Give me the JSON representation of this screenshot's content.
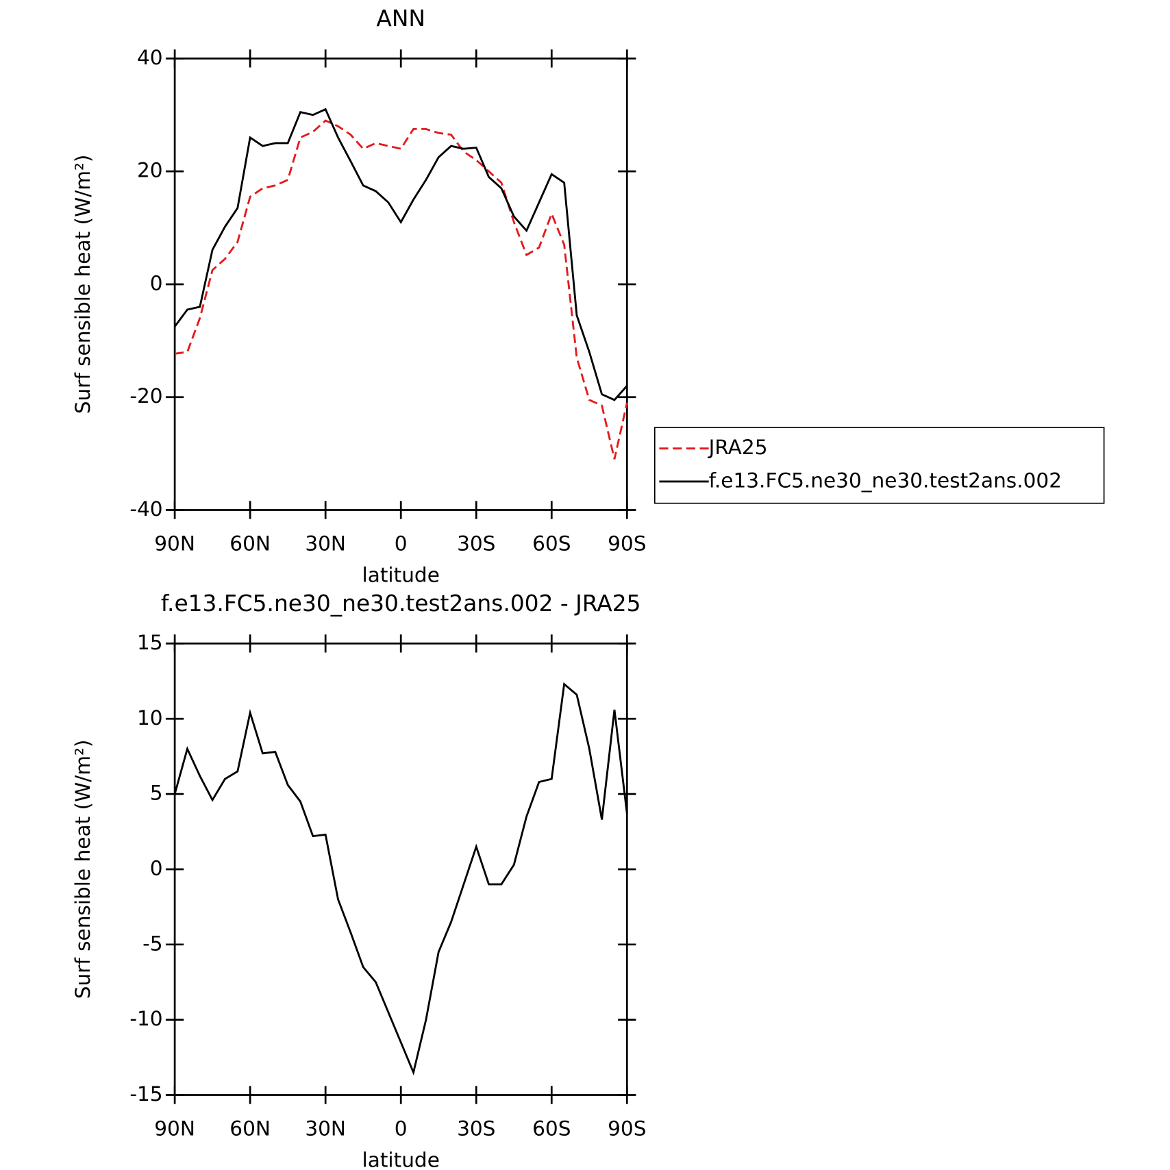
{
  "chart_data": [
    {
      "type": "line",
      "title": "ANN",
      "xlabel": "latitude",
      "ylabel": "Surf sensible heat (W/m²)",
      "x": [
        90,
        85,
        80,
        75,
        70,
        65,
        60,
        55,
        50,
        45,
        40,
        35,
        30,
        25,
        20,
        15,
        10,
        5,
        0,
        -5,
        -10,
        -15,
        -20,
        -25,
        -30,
        -35,
        -40,
        -45,
        -50,
        -55,
        -60,
        -65,
        -70,
        -75,
        -80,
        -85,
        -90
      ],
      "series": [
        {
          "name": "JRA25",
          "color": "#e41a1c",
          "style": "dashed",
          "values": [
            -12.3,
            -12,
            -6,
            2.5,
            4.5,
            7.5,
            15.5,
            17,
            17.5,
            18.5,
            26,
            27,
            29,
            28,
            26.5,
            24,
            25,
            24.5,
            24,
            27.5,
            27.5,
            26.8,
            26.5,
            23.5,
            22,
            20,
            18,
            11,
            5.2,
            6.5,
            12.5,
            7,
            -13,
            -20.5,
            -21.5,
            -31,
            -21
          ]
        },
        {
          "name": "f.e13.FC5.ne30_ne30.test2ans.002",
          "color": "#000000",
          "style": "solid",
          "values": [
            -7.5,
            -4.5,
            -4,
            6.1,
            10.2,
            13.5,
            26,
            24.5,
            25,
            25,
            30.5,
            30,
            31,
            26,
            21.8,
            17.5,
            16.5,
            14.5,
            11,
            15,
            18.5,
            22.5,
            24.5,
            24,
            24.2,
            19,
            17,
            12,
            9.5,
            14.5,
            19.5,
            18,
            -5.5,
            -12,
            -19.5,
            -20.5,
            -18
          ]
        }
      ],
      "xlim": [
        90,
        -90
      ],
      "xticks": [
        {
          "value": 90,
          "label": "90N"
        },
        {
          "value": 60,
          "label": "60N"
        },
        {
          "value": 30,
          "label": "30N"
        },
        0,
        {
          "value": -30,
          "label": "30S"
        },
        {
          "value": -60,
          "label": "60S"
        },
        {
          "value": -90,
          "label": "90S"
        }
      ],
      "ylim": [
        -40,
        40
      ],
      "yticks": [
        -40,
        -20,
        0,
        20,
        40
      ]
    },
    {
      "type": "line",
      "title": "f.e13.FC5.ne30_ne30.test2ans.002 - JRA25",
      "xlabel": "latitude",
      "ylabel": "Surf sensible heat (W/m²)",
      "x": [
        90,
        85,
        80,
        75,
        70,
        65,
        60,
        55,
        50,
        45,
        40,
        35,
        30,
        25,
        20,
        15,
        10,
        5,
        0,
        -5,
        -10,
        -15,
        -20,
        -25,
        -30,
        -35,
        -40,
        -45,
        -50,
        -55,
        -60,
        -65,
        -70,
        -75,
        -80,
        -85,
        -90
      ],
      "series": [
        {
          "color": "#000000",
          "style": "solid",
          "values": [
            5,
            8,
            6.2,
            4.6,
            6,
            6.5,
            10.4,
            7.7,
            7.8,
            5.6,
            4.5,
            2.2,
            2.3,
            -2,
            -4.2,
            -6.5,
            -7.5,
            -9.5,
            -11.5,
            -13.5,
            -10,
            -5.5,
            -3.5,
            -1,
            1.5,
            -1,
            -1,
            0.3,
            3.5,
            5.8,
            6,
            12.3,
            11.6,
            8,
            3.3,
            10.6,
            3.7
          ]
        }
      ],
      "xlim": [
        90,
        -90
      ],
      "xticks": [
        {
          "value": 90,
          "label": "90N"
        },
        {
          "value": 60,
          "label": "60N"
        },
        {
          "value": 30,
          "label": "30N"
        },
        0,
        {
          "value": -30,
          "label": "30S"
        },
        {
          "value": -60,
          "label": "60S"
        },
        {
          "value": -90,
          "label": "90S"
        }
      ],
      "ylim": [
        -15,
        15
      ],
      "yticks": [
        -15,
        -10,
        -5,
        0,
        5,
        10,
        15
      ]
    }
  ]
}
